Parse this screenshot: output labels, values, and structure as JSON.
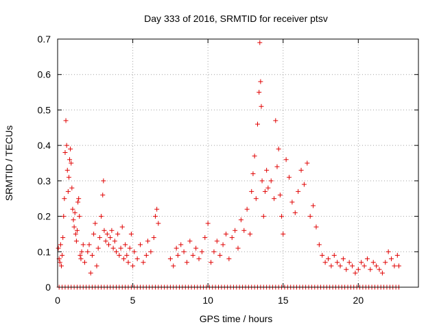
{
  "chart_data": {
    "type": "scatter",
    "title": "Day 333 of 2016, SRMTID for receiver ptsv",
    "xlabel": "GPS time / hours",
    "ylabel": "SRMTID / TECUs",
    "xlim": [
      0,
      24
    ],
    "ylim": [
      0,
      0.7
    ],
    "xticks": [
      0,
      5,
      10,
      15,
      20
    ],
    "yticks": [
      0,
      0.1,
      0.2,
      0.3,
      0.4,
      0.5,
      0.6,
      0.7
    ],
    "xtick_labels": [
      "0",
      "5",
      "10",
      "15",
      "20"
    ],
    "ytick_labels": [
      "0",
      "0.1",
      "0.2",
      "0.3",
      "0.4",
      "0.5",
      "0.6",
      "0.7"
    ],
    "grid": true,
    "marker": "plus",
    "series": [
      {
        "name": "ptsv",
        "color": "#e00000",
        "points": [
          [
            0.05,
            0.11
          ],
          [
            0.1,
            0.08
          ],
          [
            0.15,
            0.07
          ],
          [
            0.2,
            0.12
          ],
          [
            0.25,
            0.06
          ],
          [
            0.3,
            0.09
          ],
          [
            0.35,
            0.14
          ],
          [
            0.4,
            0.2
          ],
          [
            0.45,
            0.25
          ],
          [
            0.5,
            0.38
          ],
          [
            0.55,
            0.47
          ],
          [
            0.6,
            0.4
          ],
          [
            0.65,
            0.33
          ],
          [
            0.7,
            0.27
          ],
          [
            0.75,
            0.31
          ],
          [
            0.8,
            0.36
          ],
          [
            0.85,
            0.39
          ],
          [
            0.9,
            0.35
          ],
          [
            0.95,
            0.28
          ],
          [
            1.0,
            0.22
          ],
          [
            1.05,
            0.19
          ],
          [
            1.1,
            0.17
          ],
          [
            1.15,
            0.21
          ],
          [
            1.2,
            0.15
          ],
          [
            1.25,
            0.13
          ],
          [
            1.3,
            0.16
          ],
          [
            1.35,
            0.24
          ],
          [
            1.4,
            0.25
          ],
          [
            1.45,
            0.2
          ],
          [
            1.5,
            0.09
          ],
          [
            1.55,
            0.08
          ],
          [
            1.6,
            0.1
          ],
          [
            1.7,
            0.12
          ],
          [
            1.8,
            0.07
          ],
          [
            2.0,
            0.1
          ],
          [
            2.1,
            0.12
          ],
          [
            2.2,
            0.04
          ],
          [
            2.3,
            0.09
          ],
          [
            2.4,
            0.15
          ],
          [
            2.5,
            0.18
          ],
          [
            2.6,
            0.06
          ],
          [
            2.7,
            0.11
          ],
          [
            2.8,
            0.14
          ],
          [
            2.9,
            0.2
          ],
          [
            3.0,
            0.26
          ],
          [
            3.05,
            0.3
          ],
          [
            3.1,
            0.16
          ],
          [
            3.2,
            0.13
          ],
          [
            3.3,
            0.15
          ],
          [
            3.4,
            0.12
          ],
          [
            3.5,
            0.14
          ],
          [
            3.6,
            0.16
          ],
          [
            3.7,
            0.11
          ],
          [
            3.8,
            0.13
          ],
          [
            3.9,
            0.1
          ],
          [
            4.0,
            0.15
          ],
          [
            4.1,
            0.09
          ],
          [
            4.2,
            0.11
          ],
          [
            4.3,
            0.17
          ],
          [
            4.4,
            0.08
          ],
          [
            4.5,
            0.12
          ],
          [
            4.6,
            0.09
          ],
          [
            4.7,
            0.07
          ],
          [
            4.8,
            0.11
          ],
          [
            4.9,
            0.15
          ],
          [
            5.0,
            0.06
          ],
          [
            5.1,
            0.1
          ],
          [
            5.3,
            0.08
          ],
          [
            5.5,
            0.12
          ],
          [
            5.7,
            0.07
          ],
          [
            5.9,
            0.09
          ],
          [
            6.0,
            0.13
          ],
          [
            6.2,
            0.1
          ],
          [
            6.4,
            0.14
          ],
          [
            6.5,
            0.2
          ],
          [
            6.6,
            0.22
          ],
          [
            6.7,
            0.18
          ],
          [
            7.5,
            0.08
          ],
          [
            7.7,
            0.06
          ],
          [
            7.9,
            0.11
          ],
          [
            8.0,
            0.09
          ],
          [
            8.2,
            0.12
          ],
          [
            8.4,
            0.1
          ],
          [
            8.6,
            0.07
          ],
          [
            8.8,
            0.13
          ],
          [
            9.0,
            0.09
          ],
          [
            9.2,
            0.11
          ],
          [
            9.4,
            0.08
          ],
          [
            9.6,
            0.1
          ],
          [
            9.8,
            0.14
          ],
          [
            10.0,
            0.18
          ],
          [
            10.2,
            0.07
          ],
          [
            10.4,
            0.1
          ],
          [
            10.6,
            0.13
          ],
          [
            10.8,
            0.09
          ],
          [
            11.0,
            0.12
          ],
          [
            11.2,
            0.15
          ],
          [
            11.4,
            0.08
          ],
          [
            11.6,
            0.14
          ],
          [
            11.8,
            0.16
          ],
          [
            12.0,
            0.11
          ],
          [
            12.2,
            0.19
          ],
          [
            12.4,
            0.16
          ],
          [
            12.6,
            0.22
          ],
          [
            12.8,
            0.15
          ],
          [
            12.9,
            0.27
          ],
          [
            13.0,
            0.32
          ],
          [
            13.1,
            0.37
          ],
          [
            13.2,
            0.25
          ],
          [
            13.3,
            0.46
          ],
          [
            13.4,
            0.55
          ],
          [
            13.45,
            0.69
          ],
          [
            13.5,
            0.58
          ],
          [
            13.55,
            0.51
          ],
          [
            13.6,
            0.3
          ],
          [
            13.7,
            0.2
          ],
          [
            13.8,
            0.27
          ],
          [
            13.9,
            0.33
          ],
          [
            14.0,
            0.28
          ],
          [
            14.2,
            0.3
          ],
          [
            14.4,
            0.25
          ],
          [
            14.5,
            0.47
          ],
          [
            14.6,
            0.34
          ],
          [
            14.7,
            0.39
          ],
          [
            14.8,
            0.26
          ],
          [
            14.9,
            0.2
          ],
          [
            15.0,
            0.15
          ],
          [
            15.2,
            0.36
          ],
          [
            15.4,
            0.31
          ],
          [
            15.6,
            0.24
          ],
          [
            15.8,
            0.21
          ],
          [
            16.0,
            0.27
          ],
          [
            16.2,
            0.33
          ],
          [
            16.4,
            0.29
          ],
          [
            16.6,
            0.35
          ],
          [
            16.8,
            0.2
          ],
          [
            17.0,
            0.23
          ],
          [
            17.2,
            0.17
          ],
          [
            17.4,
            0.12
          ],
          [
            17.6,
            0.09
          ],
          [
            17.8,
            0.07
          ],
          [
            18.0,
            0.08
          ],
          [
            18.2,
            0.06
          ],
          [
            18.4,
            0.09
          ],
          [
            18.6,
            0.07
          ],
          [
            18.8,
            0.06
          ],
          [
            19.0,
            0.08
          ],
          [
            19.2,
            0.05
          ],
          [
            19.4,
            0.07
          ],
          [
            19.6,
            0.06
          ],
          [
            19.8,
            0.04
          ],
          [
            20.0,
            0.05
          ],
          [
            20.2,
            0.07
          ],
          [
            20.4,
            0.06
          ],
          [
            20.6,
            0.08
          ],
          [
            20.8,
            0.05
          ],
          [
            21.0,
            0.07
          ],
          [
            21.2,
            0.06
          ],
          [
            21.4,
            0.05
          ],
          [
            21.6,
            0.04
          ],
          [
            21.8,
            0.07
          ],
          [
            22.0,
            0.1
          ],
          [
            22.2,
            0.08
          ],
          [
            22.4,
            0.06
          ],
          [
            22.6,
            0.09
          ],
          [
            22.7,
            0.06
          ]
        ],
        "zero_x": [
          0.1,
          0.3,
          0.5,
          0.7,
          0.9,
          1.1,
          1.3,
          1.5,
          1.7,
          1.9,
          2.1,
          2.3,
          2.5,
          2.7,
          2.9,
          3.1,
          3.3,
          3.5,
          3.7,
          3.9,
          4.1,
          4.3,
          4.5,
          4.7,
          4.9,
          5.1,
          5.3,
          5.5,
          5.7,
          5.9,
          6.1,
          6.3,
          6.5,
          6.7,
          6.9,
          7.1,
          7.3,
          7.5,
          7.7,
          7.9,
          8.1,
          8.3,
          8.5,
          8.7,
          8.9,
          9.1,
          9.3,
          9.5,
          9.7,
          9.9,
          10.1,
          10.3,
          10.5,
          10.7,
          10.9,
          11.1,
          11.3,
          11.5,
          11.7,
          11.9,
          12.1,
          12.3,
          12.5,
          12.7,
          12.9,
          13.1,
          13.3,
          13.5,
          13.7,
          13.9,
          14.1,
          14.3,
          14.5,
          14.7,
          14.9,
          15.1,
          15.3,
          15.5,
          15.7,
          15.9,
          16.1,
          16.3,
          16.5,
          16.7,
          16.9,
          17.1,
          17.3,
          17.5,
          17.7,
          17.9,
          18.1,
          18.3,
          18.5,
          18.7,
          18.9,
          19.1,
          19.3,
          19.5,
          19.7,
          19.9,
          20.1,
          20.3,
          20.5,
          20.7,
          20.9,
          21.1,
          21.3,
          21.5,
          21.7,
          21.9,
          22.1,
          22.3,
          22.5,
          22.7
        ]
      }
    ]
  }
}
